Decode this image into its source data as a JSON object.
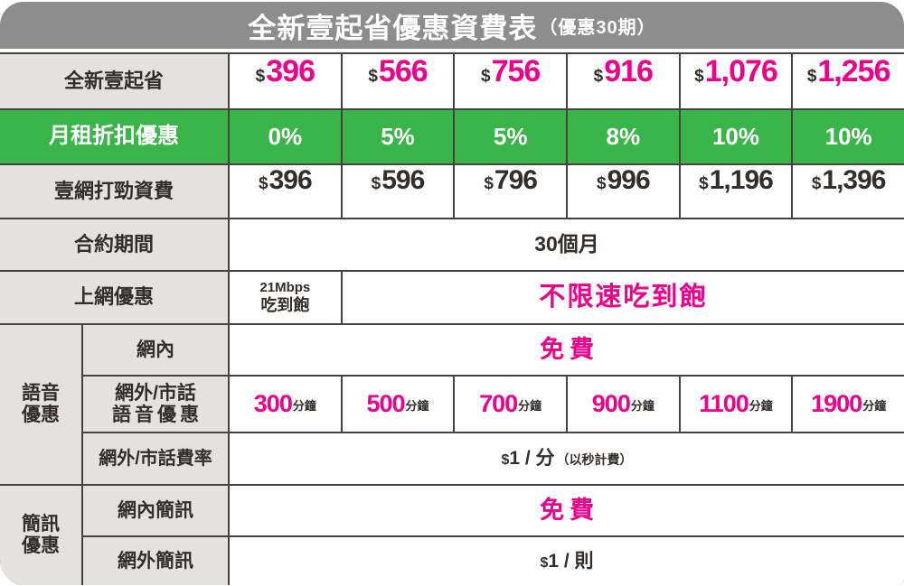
{
  "title": {
    "main": "全新壹起省優惠資費表",
    "sub": "（優惠30期）"
  },
  "currency_symbol": "$",
  "table": {
    "plan_row": {
      "label": "全新壹起省",
      "prices": [
        "396",
        "566",
        "756",
        "916",
        "1,076",
        "1,256"
      ]
    },
    "discount_row": {
      "label": "月租折扣優惠",
      "values": [
        "0%",
        "5%",
        "5%",
        "8%",
        "10%",
        "10%"
      ]
    },
    "base_row": {
      "label": "壹網打勁資費",
      "prices": [
        "396",
        "596",
        "796",
        "996",
        "1,196",
        "1,396"
      ]
    },
    "contract_row": {
      "label": "合約期間",
      "value": "30個月"
    },
    "data_row": {
      "label": "上網優惠",
      "left_value_line1": "21Mbps",
      "left_value_line2": "吃到飽",
      "main_value": "不限速吃到飽"
    },
    "voice_section": {
      "label_line1": "語音",
      "label_line2": "優惠",
      "onnet": {
        "label": "網內",
        "value": "免費"
      },
      "offnet_minutes": {
        "label_line1": "網外/市話",
        "label_line2": "語音優惠",
        "values": [
          "300",
          "500",
          "700",
          "900",
          "1100",
          "1900"
        ],
        "unit": "分鐘"
      },
      "offnet_rate": {
        "label": "網外/市話費率",
        "value_main": "1 / 分",
        "value_note": "（以秒計費）"
      }
    },
    "sms_section": {
      "label_line1": "簡訊",
      "label_line2": "優惠",
      "onnet": {
        "label": "網內簡訊",
        "value": "免費"
      },
      "offnet": {
        "label": "網外簡訊",
        "value_main": "1 / 則"
      }
    }
  },
  "colors": {
    "magenta": "#ec008c",
    "green": "#3ab54a",
    "title_gray": "#8d8d8d",
    "label_gray": "#e3e2e1",
    "border": "#474240"
  }
}
